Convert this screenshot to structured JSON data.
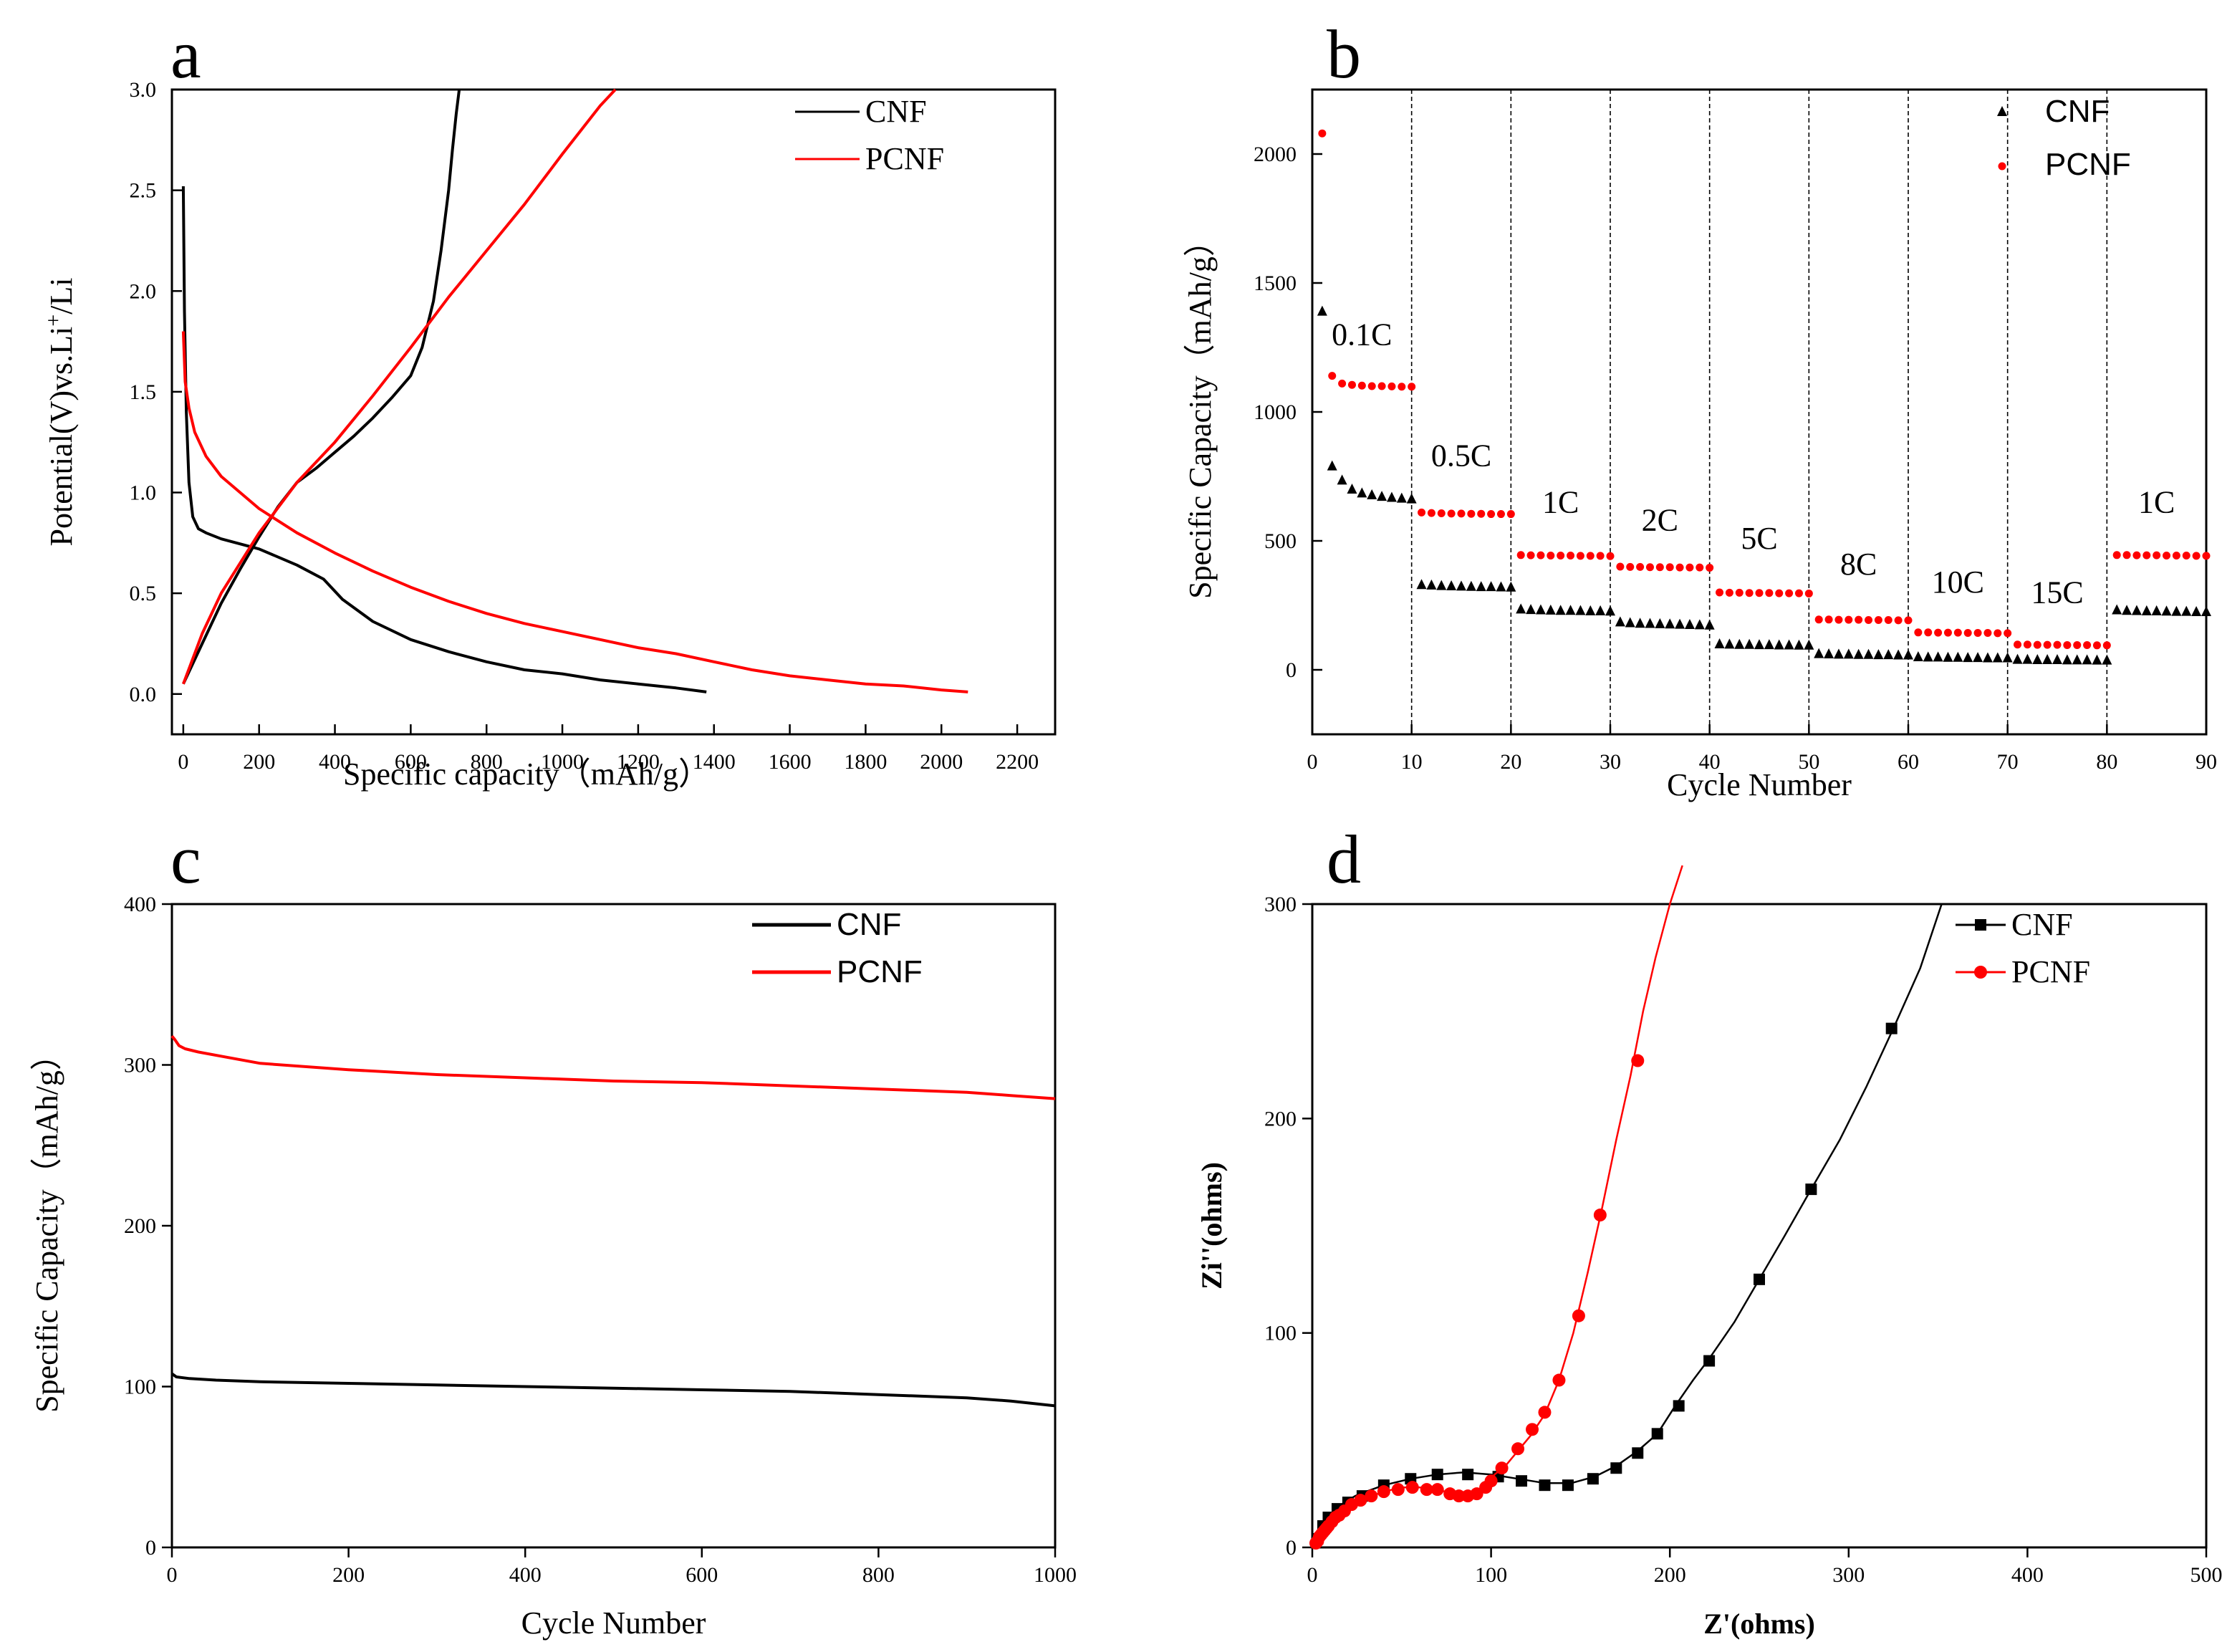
{
  "chart_data": [
    {
      "panel": "a",
      "type": "line",
      "xlabel": "Specific capacity（mAh/g）",
      "ylabel_parts": [
        "Potential(V)vs.Li",
        "+",
        "/Li"
      ],
      "xlim": [
        -30,
        2300
      ],
      "ylim": [
        -0.2,
        3.0
      ],
      "xticks": [
        0,
        200,
        400,
        600,
        800,
        1000,
        1200,
        1400,
        1600,
        1800,
        2000,
        2200
      ],
      "yticks": [
        0.0,
        0.5,
        1.0,
        1.5,
        2.0,
        2.5,
        3.0
      ],
      "ytick_labels": [
        "0.0",
        "0.5",
        "1.0",
        "1.5",
        "2.0",
        "2.5",
        "3.0"
      ],
      "legend": [
        "CNF",
        "PCNF"
      ],
      "series": [
        {
          "name": "CNF discharge",
          "legend": "CNF",
          "color": "#000000",
          "x": [
            0,
            3,
            8,
            15,
            25,
            40,
            60,
            100,
            200,
            300,
            370,
            420,
            500,
            600,
            700,
            800,
            900,
            1000,
            1100,
            1200,
            1300,
            1380
          ],
          "y": [
            2.52,
            1.9,
            1.4,
            1.05,
            0.88,
            0.82,
            0.8,
            0.77,
            0.72,
            0.64,
            0.57,
            0.47,
            0.36,
            0.27,
            0.21,
            0.16,
            0.12,
            0.1,
            0.07,
            0.05,
            0.03,
            0.01
          ]
        },
        {
          "name": "CNF charge",
          "legend": "CNF",
          "color": "#000000",
          "x": [
            0,
            50,
            100,
            150,
            200,
            250,
            300,
            350,
            400,
            450,
            500,
            550,
            600,
            630,
            660,
            680,
            700,
            710,
            720,
            728
          ],
          "y": [
            0.05,
            0.25,
            0.45,
            0.62,
            0.78,
            0.93,
            1.05,
            1.12,
            1.2,
            1.28,
            1.37,
            1.47,
            1.58,
            1.72,
            1.95,
            2.2,
            2.5,
            2.7,
            2.88,
            3.0
          ]
        },
        {
          "name": "PCNF discharge",
          "legend": "PCNF",
          "color": "#ff0000",
          "x": [
            0,
            5,
            15,
            30,
            60,
            100,
            200,
            300,
            400,
            500,
            600,
            700,
            800,
            900,
            1000,
            1100,
            1200,
            1300,
            1400,
            1500,
            1600,
            1700,
            1800,
            1900,
            2000,
            2070
          ],
          "y": [
            1.8,
            1.55,
            1.42,
            1.3,
            1.18,
            1.08,
            0.92,
            0.8,
            0.7,
            0.61,
            0.53,
            0.46,
            0.4,
            0.35,
            0.31,
            0.27,
            0.23,
            0.2,
            0.16,
            0.12,
            0.09,
            0.07,
            0.05,
            0.04,
            0.02,
            0.01
          ]
        },
        {
          "name": "PCNF charge",
          "legend": "PCNF",
          "color": "#ff0000",
          "x": [
            0,
            50,
            100,
            200,
            300,
            400,
            500,
            600,
            700,
            800,
            900,
            1000,
            1100,
            1140
          ],
          "y": [
            0.05,
            0.3,
            0.5,
            0.8,
            1.05,
            1.25,
            1.48,
            1.72,
            1.97,
            2.2,
            2.43,
            2.68,
            2.92,
            3.0
          ]
        }
      ]
    },
    {
      "panel": "b",
      "type": "scatter",
      "xlabel": "Cycle Number",
      "ylabel": "Specific Capacity（mAh/g）",
      "xlim": [
        0,
        90
      ],
      "ylim": [
        -250,
        2250
      ],
      "xticks": [
        0,
        10,
        20,
        30,
        40,
        50,
        60,
        70,
        80,
        90
      ],
      "yticks": [
        0,
        500,
        1000,
        1500,
        2000
      ],
      "legend": [
        "CNF",
        "PCNF"
      ],
      "dividers": [
        10,
        20,
        30,
        40,
        50,
        60,
        70,
        80
      ],
      "rate_labels": [
        {
          "text": "0.1C",
          "x": 5,
          "y": 1260
        },
        {
          "text": "0.5C",
          "x": 15,
          "y": 790
        },
        {
          "text": "1C",
          "x": 25,
          "y": 610
        },
        {
          "text": "2C",
          "x": 35,
          "y": 540
        },
        {
          "text": "5C",
          "x": 45,
          "y": 470
        },
        {
          "text": "8C",
          "x": 55,
          "y": 370
        },
        {
          "text": "10C",
          "x": 65,
          "y": 300
        },
        {
          "text": "15C",
          "x": 75,
          "y": 260
        },
        {
          "text": "1C",
          "x": 85,
          "y": 610
        }
      ],
      "series": [
        {
          "name": "CNF",
          "marker": "triangle",
          "color": "#000000",
          "x": [
            1,
            2,
            3,
            4,
            5,
            6,
            7,
            8,
            9,
            10,
            11,
            12,
            13,
            14,
            15,
            16,
            17,
            18,
            19,
            20,
            21,
            22,
            23,
            24,
            25,
            26,
            27,
            28,
            29,
            30,
            31,
            32,
            33,
            34,
            35,
            36,
            37,
            38,
            39,
            40,
            41,
            42,
            43,
            44,
            45,
            46,
            47,
            48,
            49,
            50,
            51,
            52,
            53,
            54,
            55,
            56,
            57,
            58,
            59,
            60,
            61,
            62,
            63,
            64,
            65,
            66,
            67,
            68,
            69,
            70,
            71,
            72,
            73,
            74,
            75,
            76,
            77,
            78,
            79,
            80,
            81,
            82,
            83,
            84,
            85,
            86,
            87,
            88,
            89,
            90
          ],
          "y": [
            1390,
            790,
            735,
            700,
            685,
            678,
            672,
            668,
            665,
            662,
            330,
            328,
            326,
            325,
            324,
            323,
            322,
            322,
            321,
            320,
            235,
            233,
            232,
            231,
            230,
            230,
            229,
            228,
            228,
            227,
            185,
            182,
            180,
            179,
            178,
            177,
            176,
            175,
            174,
            173,
            100,
            99,
            98,
            98,
            97,
            97,
            96,
            96,
            95,
            95,
            62,
            61,
            60,
            60,
            59,
            59,
            58,
            58,
            57,
            57,
            50,
            49,
            49,
            48,
            48,
            47,
            47,
            46,
            46,
            46,
            40,
            40,
            39,
            39,
            39,
            38,
            38,
            38,
            37,
            37,
            232,
            230,
            229,
            228,
            228,
            227,
            226,
            226,
            225,
            225
          ]
        },
        {
          "name": "PCNF",
          "marker": "circle",
          "color": "#ff0000",
          "x": [
            1,
            2,
            3,
            4,
            5,
            6,
            7,
            8,
            9,
            10,
            11,
            12,
            13,
            14,
            15,
            16,
            17,
            18,
            19,
            20,
            21,
            22,
            23,
            24,
            25,
            26,
            27,
            28,
            29,
            30,
            31,
            32,
            33,
            34,
            35,
            36,
            37,
            38,
            39,
            40,
            41,
            42,
            43,
            44,
            45,
            46,
            47,
            48,
            49,
            50,
            51,
            52,
            53,
            54,
            55,
            56,
            57,
            58,
            59,
            60,
            61,
            62,
            63,
            64,
            65,
            66,
            67,
            68,
            69,
            70,
            71,
            72,
            73,
            74,
            75,
            76,
            77,
            78,
            79,
            80,
            81,
            82,
            83,
            84,
            85,
            86,
            87,
            88,
            89,
            90
          ],
          "y": [
            2080,
            1140,
            1110,
            1105,
            1102,
            1100,
            1100,
            1099,
            1098,
            1098,
            610,
            608,
            607,
            606,
            606,
            605,
            605,
            604,
            604,
            604,
            445,
            444,
            444,
            443,
            443,
            443,
            442,
            442,
            442,
            441,
            400,
            399,
            399,
            398,
            398,
            398,
            397,
            397,
            397,
            396,
            300,
            299,
            299,
            298,
            298,
            298,
            297,
            297,
            297,
            296,
            195,
            195,
            194,
            194,
            194,
            193,
            193,
            193,
            192,
            192,
            145,
            145,
            144,
            144,
            144,
            143,
            143,
            143,
            142,
            142,
            98,
            98,
            97,
            97,
            97,
            96,
            96,
            96,
            95,
            95,
            445,
            445,
            444,
            444,
            444,
            443,
            443,
            443,
            442,
            442
          ]
        }
      ]
    },
    {
      "panel": "c",
      "type": "line",
      "xlabel": "Cycle Number",
      "ylabel": "Specific Capacity（mAh/g）",
      "xlim": [
        0,
        1000
      ],
      "ylim": [
        0,
        400
      ],
      "xticks": [
        0,
        200,
        400,
        600,
        800,
        1000
      ],
      "yticks": [
        0,
        100,
        200,
        300,
        400
      ],
      "legend": [
        "CNF",
        "PCNF"
      ],
      "series": [
        {
          "name": "CNF",
          "color": "#000000",
          "x": [
            0,
            5,
            20,
            50,
            100,
            200,
            300,
            400,
            500,
            600,
            700,
            800,
            900,
            950,
            1000
          ],
          "y": [
            108,
            106,
            105,
            104,
            103,
            102,
            101,
            100,
            99,
            98,
            97,
            95,
            93,
            91,
            88
          ]
        },
        {
          "name": "PCNF",
          "color": "#ff0000",
          "x": [
            0,
            3,
            8,
            15,
            30,
            60,
            100,
            200,
            300,
            400,
            500,
            600,
            700,
            800,
            900,
            950,
            1000
          ],
          "y": [
            318,
            316,
            312,
            310,
            308,
            305,
            301,
            297,
            294,
            292,
            290,
            289,
            287,
            285,
            283,
            281,
            279
          ]
        }
      ]
    },
    {
      "panel": "d",
      "type": "line",
      "xlabel": "Z'(ohms)",
      "ylabel": "Zi''(ohms)",
      "xlim": [
        0,
        500
      ],
      "ylim": [
        0,
        300
      ],
      "xticks": [
        0,
        100,
        200,
        300,
        400,
        500
      ],
      "yticks": [
        0,
        100,
        200,
        300
      ],
      "legend": [
        "CNF",
        "PCNF"
      ],
      "series": [
        {
          "name": "CNF",
          "marker": "square",
          "color": "#000000",
          "x": [
            2,
            4,
            6,
            9,
            13,
            18,
            24,
            30,
            40,
            55,
            70,
            85,
            100,
            115,
            130,
            145,
            158,
            170,
            182,
            193,
            203,
            213,
            222,
            236,
            250,
            264,
            279,
            295,
            310,
            325,
            340,
            352
          ],
          "y": [
            2,
            6,
            10,
            14,
            18,
            21,
            24,
            26,
            29,
            32,
            34,
            35,
            34,
            32,
            30,
            30,
            33,
            38,
            45,
            53,
            66,
            78,
            88,
            105,
            125,
            145,
            167,
            190,
            215,
            242,
            270,
            300
          ],
          "marker_x": [
            3,
            6,
            9,
            14,
            20,
            28,
            40,
            55,
            70,
            87,
            104,
            117,
            130,
            143,
            157,
            170,
            182,
            193,
            205,
            222,
            250,
            279,
            324
          ],
          "marker_y": [
            4,
            10,
            14,
            18,
            21,
            24,
            29,
            32,
            34,
            34,
            33,
            31,
            29,
            29,
            32,
            37,
            44,
            53,
            66,
            87,
            125,
            167,
            242
          ]
        },
        {
          "name": "PCNF",
          "marker": "circle",
          "color": "#ff0000",
          "x": [
            1,
            2,
            4,
            6,
            8,
            10,
            13,
            16,
            20,
            25,
            30,
            40,
            50,
            60,
            68,
            75,
            82,
            88,
            93,
            98,
            102,
            108,
            115,
            122,
            130,
            138,
            146,
            154,
            162,
            170,
            178,
            185,
            192,
            200,
            207
          ],
          "y": [
            1,
            3,
            5,
            7,
            9,
            11,
            13,
            15,
            18,
            21,
            23,
            26,
            28,
            28,
            27,
            26,
            24,
            24,
            26,
            30,
            34,
            38,
            45,
            52,
            62,
            78,
            100,
            128,
            158,
            190,
            220,
            250,
            275,
            300,
            318
          ],
          "marker_x": [
            2,
            3,
            4,
            5,
            6,
            7,
            8,
            9,
            11,
            13,
            15,
            18,
            22,
            27,
            33,
            40,
            48,
            56,
            64,
            70,
            77,
            82,
            87,
            92,
            97,
            100,
            106,
            115,
            123,
            130,
            138,
            149,
            161,
            182
          ],
          "marker_y": [
            2,
            3,
            5,
            6,
            7,
            8,
            9,
            10,
            12,
            14,
            15,
            17,
            20,
            22,
            24,
            26,
            27,
            28,
            27,
            27,
            25,
            24,
            24,
            25,
            28,
            31,
            37,
            46,
            55,
            63,
            78,
            108,
            155,
            227
          ]
        }
      ]
    }
  ],
  "panel_letters": [
    "a",
    "b",
    "c",
    "d"
  ]
}
